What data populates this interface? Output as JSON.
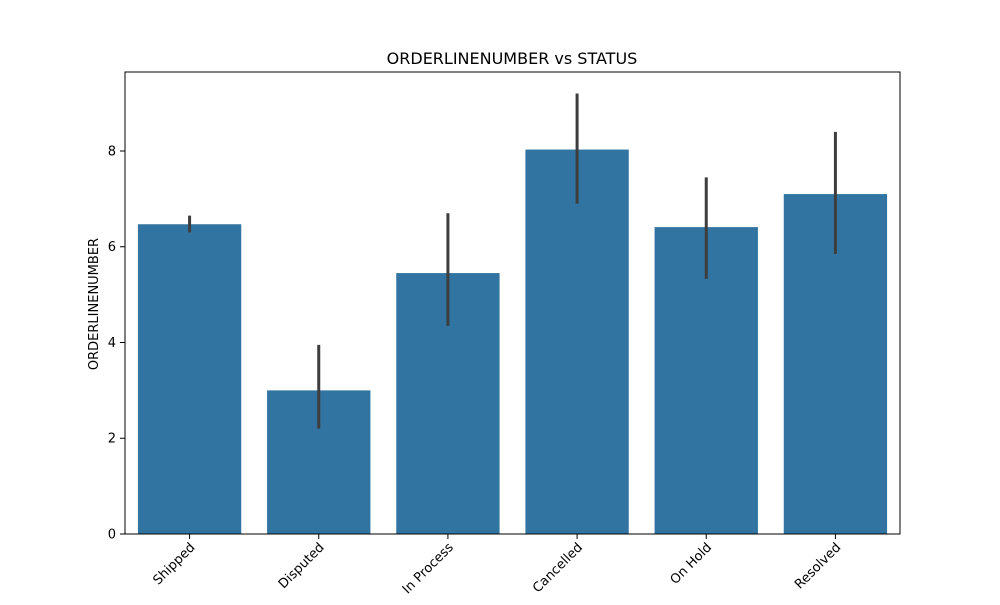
{
  "chart_data": {
    "type": "bar",
    "title": "ORDERLINENUMBER vs STATUS",
    "xlabel": "",
    "ylabel": "ORDERLINENUMBER",
    "categories": [
      "Shipped",
      "Disputed",
      "In Process",
      "Cancelled",
      "On Hold",
      "Resolved"
    ],
    "values": [
      6.47,
      3.0,
      5.45,
      8.03,
      6.41,
      7.1
    ],
    "error_bars": [
      [
        6.3,
        6.65
      ],
      [
        2.2,
        3.95
      ],
      [
        4.35,
        6.7
      ],
      [
        6.9,
        9.2
      ],
      [
        5.33,
        7.45
      ],
      [
        5.85,
        8.4
      ]
    ],
    "ylim": [
      0,
      9.65
    ],
    "yticks": [
      0,
      2,
      4,
      6,
      8
    ],
    "colors": {
      "bar": "#3274a1",
      "errorbar": "#3d3d3d"
    },
    "grid": false,
    "legend": "none"
  }
}
